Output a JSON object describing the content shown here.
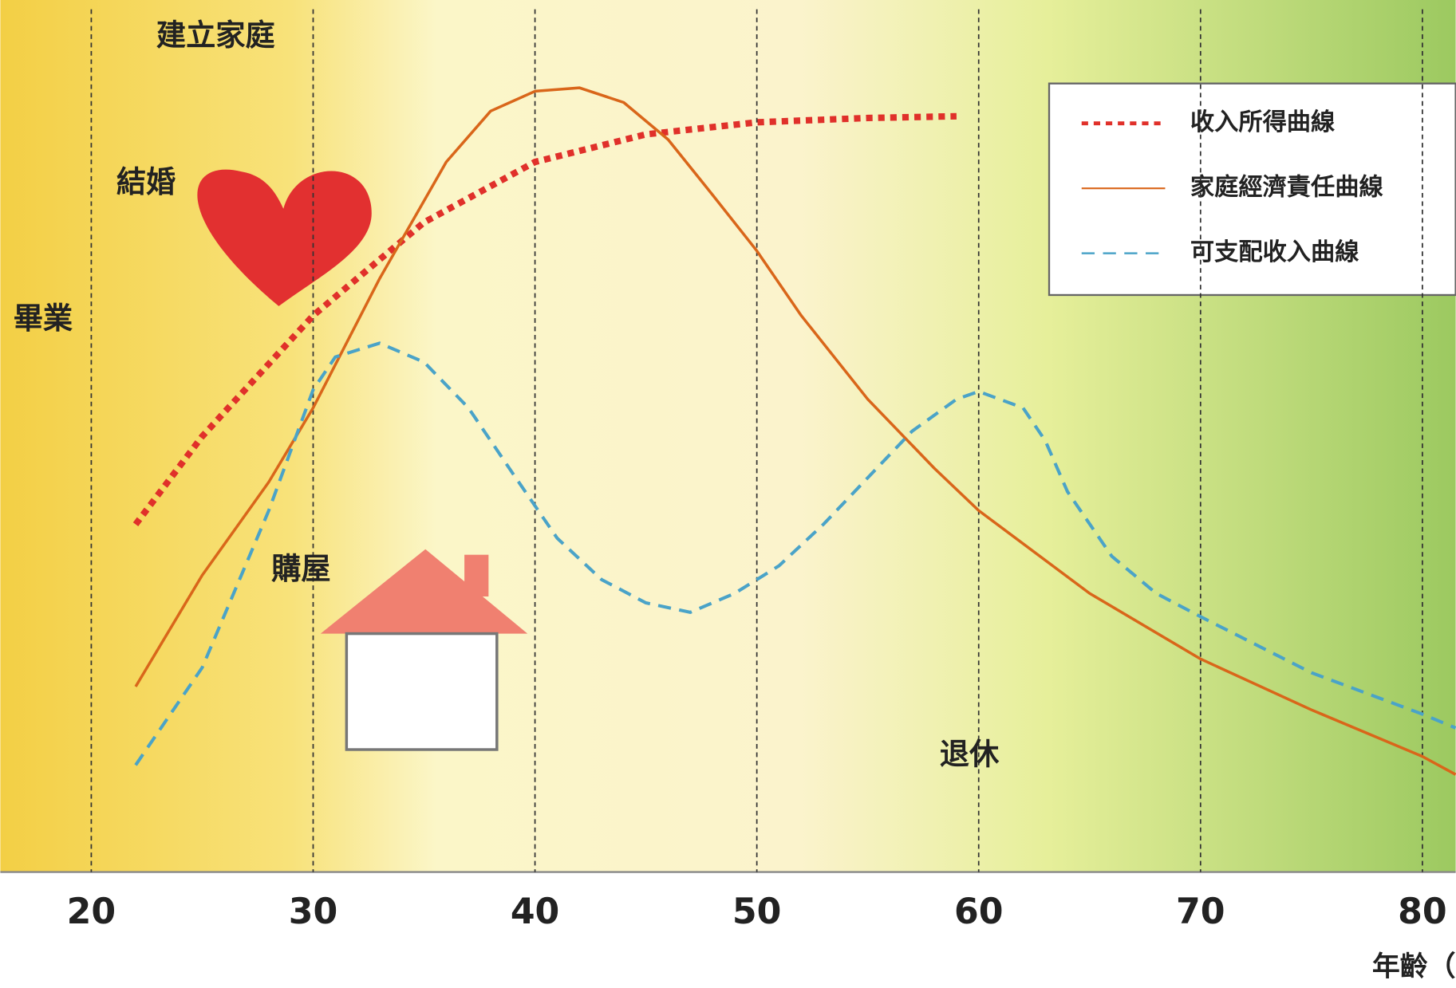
{
  "chart_data": {
    "type": "line",
    "x_label": "年齡（歲）",
    "xlim": [
      15.9,
      81.5
    ],
    "xticks": [
      20,
      30,
      40,
      50,
      60,
      70,
      80
    ],
    "ylim": [
      0,
      100
    ],
    "grid": true,
    "legend": "top-right",
    "annotations": [
      "畢業",
      "結婚",
      "建立家庭",
      "購屋",
      "退休"
    ],
    "series": [
      {
        "name": "收入所得曲線",
        "color": "#e0302a",
        "style": "dotted",
        "x": [
          22,
          25,
          30,
          33,
          35,
          40,
          45,
          50,
          55,
          59
        ],
        "values": [
          40.3,
          50.5,
          64.5,
          71,
          75.3,
          82.3,
          85.5,
          86.9,
          87.4,
          87.6
        ]
      },
      {
        "name": "家庭經濟責任曲線",
        "color": "#d9661a",
        "style": "solid",
        "x": [
          22,
          25,
          28,
          30,
          33,
          36,
          38,
          40,
          42,
          44,
          46,
          48,
          50,
          52,
          55,
          58,
          60,
          65,
          70,
          75,
          80,
          81.5
        ],
        "values": [
          21.5,
          34.4,
          45.2,
          53.8,
          68.8,
          82.3,
          88.2,
          90.5,
          90.9,
          89.2,
          84.9,
          78.5,
          72,
          64.5,
          54.8,
          46.8,
          41.9,
          32.3,
          24.7,
          18.8,
          13.4,
          11.3
        ]
      },
      {
        "name": "可支配收入曲線",
        "color": "#4aa3c8",
        "style": "dashed",
        "x": [
          22,
          25,
          28,
          30,
          31,
          33,
          35,
          37,
          39,
          41,
          43,
          45,
          47,
          49,
          51,
          53,
          55,
          57,
          59,
          60,
          62,
          63,
          64,
          66,
          68,
          70,
          75,
          80,
          81.5
        ],
        "values": [
          12.4,
          23.7,
          41.9,
          55.9,
          59.7,
          61.3,
          59.1,
          53.8,
          46.2,
          38.7,
          33.9,
          31.2,
          30.1,
          32.3,
          35.5,
          40.3,
          45.7,
          51.1,
          54.8,
          55.7,
          53.8,
          50,
          44.1,
          36.6,
          32.3,
          29.6,
          23.1,
          18.3,
          16.7
        ]
      }
    ]
  }
}
